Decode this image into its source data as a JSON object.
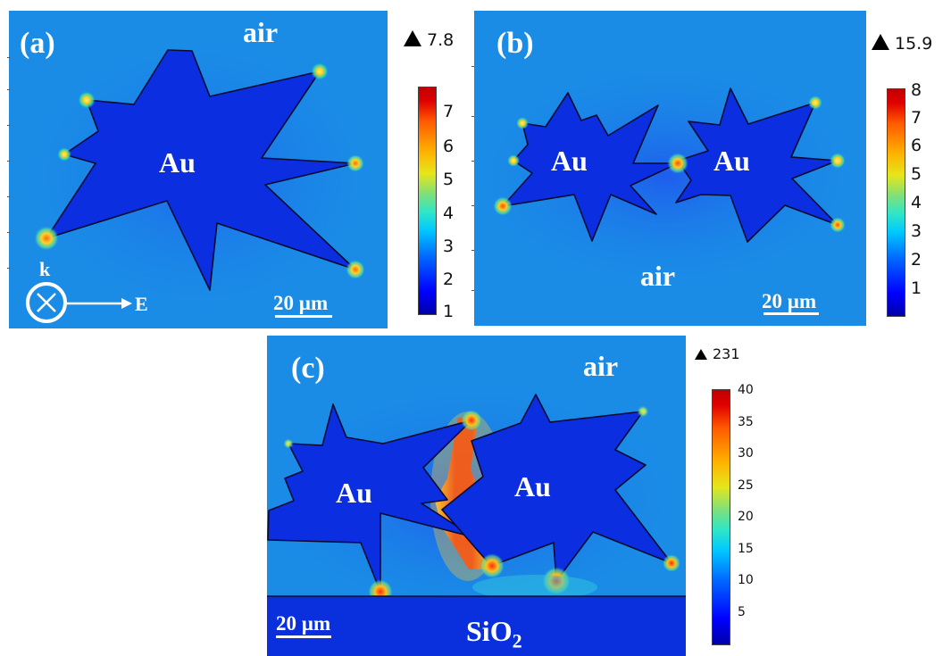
{
  "panels": {
    "a": {
      "label": "(a)",
      "medium": "air",
      "particle": "Au",
      "scale": "20 µm",
      "max": "7.8",
      "colorbar_ticks": [
        "1",
        "2",
        "3",
        "4",
        "5",
        "6",
        "7"
      ],
      "k_label": "k",
      "e_label": "E"
    },
    "b": {
      "label": "(b)",
      "medium": "air",
      "particles": [
        "Au",
        "Au"
      ],
      "scale": "20 µm",
      "max": "15.9",
      "colorbar_ticks": [
        "1",
        "2",
        "3",
        "4",
        "5",
        "6",
        "7",
        "8"
      ]
    },
    "c": {
      "label": "(c)",
      "medium": "air",
      "particles": [
        "Au",
        "Au"
      ],
      "substrate": "SiO",
      "substrate_sub": "2",
      "scale": "20 µm",
      "max": "231",
      "colorbar_ticks": [
        "5",
        "10",
        "15",
        "20",
        "25",
        "30",
        "35",
        "40"
      ]
    }
  },
  "colors": {
    "field_background": "#1a8ce6",
    "gold": "#0a2ee0",
    "hotspot": "#ffd23a",
    "gap_hot": "#e81a0a",
    "substrate": "#0a30dd"
  }
}
